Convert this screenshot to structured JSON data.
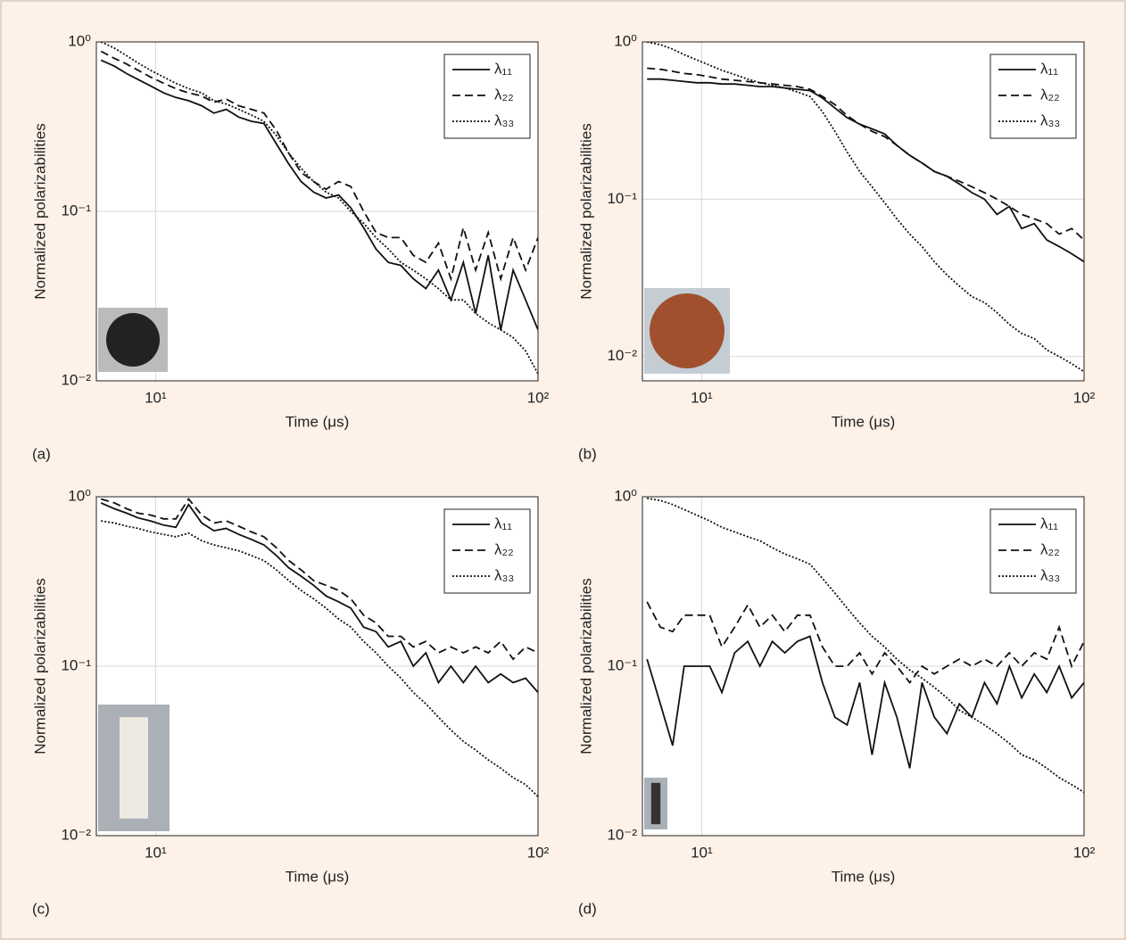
{
  "chart_data": [
    {
      "type": "line",
      "panel_label": "(a)",
      "xlabel": "Time (μs)",
      "ylabel": "Normalized polarizabilities",
      "xscale": "log",
      "yscale": "log",
      "grid": true,
      "legend": "upper right",
      "xlim": [
        7,
        100
      ],
      "ylim": [
        0.01,
        1
      ],
      "xticks": [
        {
          "value": 10,
          "label": "10¹"
        },
        {
          "value": 100,
          "label": "10²"
        }
      ],
      "yticks": [
        {
          "value": 0.01,
          "label": "10⁻²"
        },
        {
          "value": 0.1,
          "label": "10⁻¹"
        },
        {
          "value": 1,
          "label": "10⁰"
        }
      ],
      "x": [
        7.2,
        7.8,
        8.4,
        9,
        9.7,
        10.5,
        11.3,
        12.2,
        13.2,
        14.2,
        15.3,
        16.5,
        17.8,
        19.2,
        20.7,
        22.3,
        24,
        25.9,
        27.9,
        30.1,
        32.4,
        35,
        37.7,
        40.6,
        43.8,
        47.2,
        50.9,
        54.9,
        59.2,
        63.8,
        68.7,
        74.1,
        79.9,
        86.1,
        92.8,
        100
      ],
      "series": [
        {
          "name": "λ₁₁",
          "color": "#111111",
          "dash": "solid",
          "values": [
            0.78,
            0.72,
            0.65,
            0.6,
            0.55,
            0.5,
            0.47,
            0.45,
            0.42,
            0.38,
            0.4,
            0.36,
            0.34,
            0.33,
            0.25,
            0.19,
            0.15,
            0.13,
            0.12,
            0.125,
            0.105,
            0.08,
            0.06,
            0.05,
            0.048,
            0.04,
            0.035,
            0.045,
            0.03,
            0.05,
            0.025,
            0.055,
            0.02,
            0.045,
            0.03,
            0.02
          ]
        },
        {
          "name": "λ₂₂",
          "color": "#111111",
          "dash": "dashed",
          "values": [
            0.88,
            0.8,
            0.74,
            0.68,
            0.62,
            0.57,
            0.53,
            0.5,
            0.48,
            0.44,
            0.46,
            0.42,
            0.4,
            0.38,
            0.3,
            0.22,
            0.17,
            0.15,
            0.135,
            0.15,
            0.14,
            0.1,
            0.075,
            0.07,
            0.07,
            0.055,
            0.05,
            0.065,
            0.04,
            0.08,
            0.045,
            0.075,
            0.04,
            0.07,
            0.045,
            0.07
          ]
        },
        {
          "name": "λ₃₃",
          "color": "#111111",
          "dash": "dotted",
          "values": [
            1,
            0.92,
            0.83,
            0.75,
            0.68,
            0.62,
            0.57,
            0.53,
            0.5,
            0.45,
            0.43,
            0.4,
            0.37,
            0.34,
            0.28,
            0.22,
            0.18,
            0.15,
            0.13,
            0.12,
            0.1,
            0.085,
            0.07,
            0.06,
            0.05,
            0.045,
            0.04,
            0.035,
            0.03,
            0.03,
            0.025,
            0.022,
            0.02,
            0.018,
            0.015,
            0.011
          ]
        }
      ]
    },
    {
      "type": "line",
      "panel_label": "(b)",
      "xlabel": "Time (μs)",
      "ylabel": "Normalized polarizabilities",
      "xscale": "log",
      "yscale": "log",
      "grid": true,
      "legend": "upper right",
      "xlim": [
        7,
        100
      ],
      "ylim": [
        0.007,
        1
      ],
      "xticks": [
        {
          "value": 10,
          "label": "10¹"
        },
        {
          "value": 100,
          "label": "10²"
        }
      ],
      "yticks": [
        {
          "value": 0.01,
          "label": "10⁻²"
        },
        {
          "value": 0.1,
          "label": "10⁻¹"
        },
        {
          "value": 1,
          "label": "10⁰"
        }
      ],
      "x": [
        7.2,
        7.8,
        8.4,
        9,
        9.7,
        10.5,
        11.3,
        12.2,
        13.2,
        14.2,
        15.3,
        16.5,
        17.8,
        19.2,
        20.7,
        22.3,
        24,
        25.9,
        27.9,
        30.1,
        32.4,
        35,
        37.7,
        40.6,
        43.8,
        47.2,
        50.9,
        54.9,
        59.2,
        63.8,
        68.7,
        74.1,
        79.9,
        86.1,
        92.8,
        100
      ],
      "series": [
        {
          "name": "λ₁₁",
          "color": "#111111",
          "dash": "solid",
          "values": [
            0.58,
            0.58,
            0.57,
            0.56,
            0.55,
            0.55,
            0.54,
            0.54,
            0.53,
            0.52,
            0.52,
            0.51,
            0.5,
            0.49,
            0.44,
            0.38,
            0.33,
            0.3,
            0.28,
            0.26,
            0.22,
            0.19,
            0.17,
            0.15,
            0.14,
            0.125,
            0.11,
            0.1,
            0.08,
            0.09,
            0.065,
            0.07,
            0.055,
            0.05,
            0.045,
            0.04
          ]
        },
        {
          "name": "λ₂₂",
          "color": "#111111",
          "dash": "dashed",
          "values": [
            0.68,
            0.67,
            0.65,
            0.63,
            0.62,
            0.6,
            0.58,
            0.57,
            0.56,
            0.55,
            0.54,
            0.53,
            0.52,
            0.5,
            0.45,
            0.4,
            0.34,
            0.3,
            0.27,
            0.25,
            0.22,
            0.19,
            0.17,
            0.15,
            0.14,
            0.13,
            0.12,
            0.11,
            0.1,
            0.09,
            0.08,
            0.075,
            0.07,
            0.06,
            0.065,
            0.055
          ]
        },
        {
          "name": "λ₃₃",
          "color": "#111111",
          "dash": "dotted",
          "values": [
            1,
            0.96,
            0.9,
            0.83,
            0.77,
            0.71,
            0.66,
            0.62,
            0.58,
            0.55,
            0.53,
            0.51,
            0.48,
            0.45,
            0.36,
            0.27,
            0.2,
            0.15,
            0.12,
            0.095,
            0.075,
            0.06,
            0.05,
            0.04,
            0.033,
            0.028,
            0.024,
            0.022,
            0.019,
            0.016,
            0.014,
            0.013,
            0.011,
            0.01,
            0.009,
            0.008
          ]
        }
      ]
    },
    {
      "type": "line",
      "panel_label": "(c)",
      "xlabel": "Time (μs)",
      "ylabel": "Normalized polarizabilities",
      "xscale": "log",
      "yscale": "log",
      "grid": true,
      "legend": "upper right",
      "xlim": [
        7,
        100
      ],
      "ylim": [
        0.01,
        1
      ],
      "xticks": [
        {
          "value": 10,
          "label": "10¹"
        },
        {
          "value": 100,
          "label": "10²"
        }
      ],
      "yticks": [
        {
          "value": 0.01,
          "label": "10⁻²"
        },
        {
          "value": 0.1,
          "label": "10⁻¹"
        },
        {
          "value": 1,
          "label": "10⁰"
        }
      ],
      "x": [
        7.2,
        7.8,
        8.4,
        9,
        9.7,
        10.5,
        11.3,
        12.2,
        13.2,
        14.2,
        15.3,
        16.5,
        17.8,
        19.2,
        20.7,
        22.3,
        24,
        25.9,
        27.9,
        30.1,
        32.4,
        35,
        37.7,
        40.6,
        43.8,
        47.2,
        50.9,
        54.9,
        59.2,
        63.8,
        68.7,
        74.1,
        79.9,
        86.1,
        92.8,
        100
      ],
      "series": [
        {
          "name": "λ₁₁",
          "color": "#111111",
          "dash": "solid",
          "values": [
            0.92,
            0.85,
            0.8,
            0.75,
            0.72,
            0.68,
            0.66,
            0.9,
            0.7,
            0.63,
            0.65,
            0.6,
            0.56,
            0.52,
            0.45,
            0.38,
            0.34,
            0.3,
            0.26,
            0.24,
            0.22,
            0.17,
            0.16,
            0.13,
            0.14,
            0.1,
            0.12,
            0.08,
            0.1,
            0.08,
            0.1,
            0.08,
            0.09,
            0.08,
            0.085,
            0.07
          ]
        },
        {
          "name": "λ₂₂",
          "color": "#111111",
          "dash": "dashed",
          "values": [
            0.97,
            0.92,
            0.85,
            0.8,
            0.78,
            0.74,
            0.74,
            0.97,
            0.78,
            0.7,
            0.72,
            0.67,
            0.62,
            0.58,
            0.5,
            0.42,
            0.37,
            0.32,
            0.3,
            0.28,
            0.25,
            0.2,
            0.18,
            0.15,
            0.15,
            0.13,
            0.14,
            0.12,
            0.13,
            0.12,
            0.13,
            0.12,
            0.14,
            0.11,
            0.13,
            0.12
          ]
        },
        {
          "name": "λ₃₃",
          "color": "#111111",
          "dash": "dotted",
          "values": [
            0.72,
            0.7,
            0.67,
            0.65,
            0.62,
            0.6,
            0.58,
            0.61,
            0.55,
            0.52,
            0.5,
            0.48,
            0.45,
            0.42,
            0.37,
            0.32,
            0.28,
            0.25,
            0.22,
            0.19,
            0.17,
            0.14,
            0.12,
            0.1,
            0.085,
            0.07,
            0.06,
            0.05,
            0.042,
            0.036,
            0.032,
            0.028,
            0.025,
            0.022,
            0.02,
            0.017
          ]
        }
      ]
    },
    {
      "type": "line",
      "panel_label": "(d)",
      "xlabel": "Time (μs)",
      "ylabel": "Normalized polarizabilities",
      "xscale": "log",
      "yscale": "log",
      "grid": true,
      "legend": "upper right",
      "xlim": [
        7,
        100
      ],
      "ylim": [
        0.01,
        1
      ],
      "xticks": [
        {
          "value": 10,
          "label": "10¹"
        },
        {
          "value": 100,
          "label": "10²"
        }
      ],
      "yticks": [
        {
          "value": 0.01,
          "label": "10⁻²"
        },
        {
          "value": 0.1,
          "label": "10⁻¹"
        },
        {
          "value": 1,
          "label": "10⁰"
        }
      ],
      "x": [
        7.2,
        7.8,
        8.4,
        9,
        9.7,
        10.5,
        11.3,
        12.2,
        13.2,
        14.2,
        15.3,
        16.5,
        17.8,
        19.2,
        20.7,
        22.3,
        24,
        25.9,
        27.9,
        30.1,
        32.4,
        35,
        37.7,
        40.6,
        43.8,
        47.2,
        50.9,
        54.9,
        59.2,
        63.8,
        68.7,
        74.1,
        79.9,
        86.1,
        92.8,
        100
      ],
      "series": [
        {
          "name": "λ₁₁",
          "color": "#111111",
          "dash": "solid",
          "values": [
            0.11,
            0.06,
            0.034,
            0.1,
            0.1,
            0.1,
            0.07,
            0.12,
            0.14,
            0.1,
            0.14,
            0.12,
            0.14,
            0.15,
            0.08,
            0.05,
            0.045,
            0.08,
            0.03,
            0.08,
            0.05,
            0.025,
            0.08,
            0.05,
            0.04,
            0.06,
            0.05,
            0.08,
            0.06,
            0.1,
            0.065,
            0.09,
            0.07,
            0.1,
            0.065,
            0.08
          ]
        },
        {
          "name": "λ₂₂",
          "color": "#111111",
          "dash": "dashed",
          "values": [
            0.24,
            0.17,
            0.16,
            0.2,
            0.2,
            0.2,
            0.13,
            0.17,
            0.23,
            0.17,
            0.2,
            0.16,
            0.2,
            0.2,
            0.13,
            0.1,
            0.1,
            0.12,
            0.09,
            0.12,
            0.1,
            0.08,
            0.1,
            0.09,
            0.1,
            0.11,
            0.1,
            0.11,
            0.1,
            0.12,
            0.1,
            0.12,
            0.11,
            0.17,
            0.1,
            0.14
          ]
        },
        {
          "name": "λ₃₃",
          "color": "#111111",
          "dash": "dotted",
          "values": [
            0.98,
            0.95,
            0.9,
            0.84,
            0.78,
            0.72,
            0.66,
            0.62,
            0.58,
            0.55,
            0.5,
            0.46,
            0.43,
            0.4,
            0.33,
            0.27,
            0.22,
            0.18,
            0.15,
            0.13,
            0.11,
            0.095,
            0.085,
            0.075,
            0.065,
            0.055,
            0.05,
            0.045,
            0.04,
            0.035,
            0.03,
            0.028,
            0.025,
            0.022,
            0.02,
            0.018
          ]
        }
      ]
    }
  ]
}
